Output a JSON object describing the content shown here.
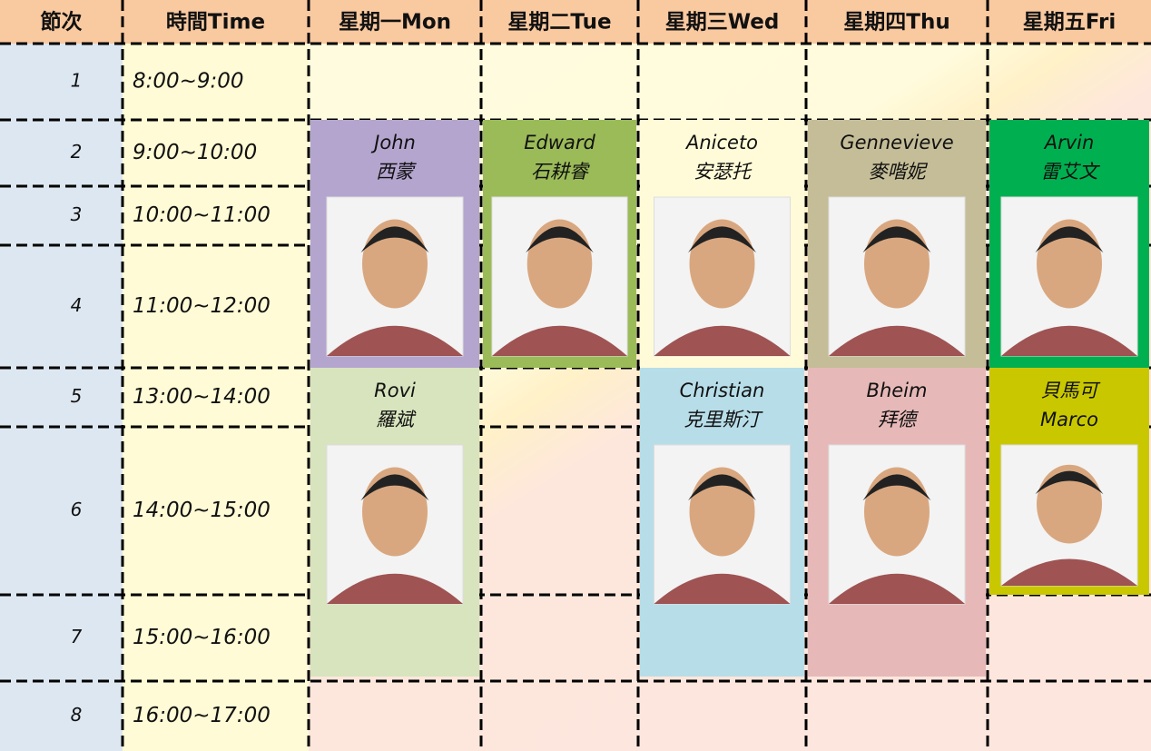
{
  "header": [
    "節次",
    "時間Time",
    "星期一Mon",
    "星期二Tue",
    "星期三Wed",
    "星期四Thu",
    "星期五Fri"
  ],
  "rows": [
    {
      "period": "1",
      "time": "8:00~9:00"
    },
    {
      "period": "2",
      "time": "9:00~10:00"
    },
    {
      "period": "3",
      "time": "10:00~11:00"
    },
    {
      "period": "4",
      "time": "11:00~12:00"
    },
    {
      "period": "5",
      "time": "13:00~14:00"
    },
    {
      "period": "6",
      "time": "14:00~15:00"
    },
    {
      "period": "7",
      "time": "15:00~16:00"
    },
    {
      "period": "8",
      "time": "16:00~17:00"
    }
  ],
  "teachers": [
    {
      "line1": "John",
      "line2": "西蒙"
    },
    {
      "line1": "Edward",
      "line2": "石耕睿"
    },
    {
      "line1": "Aniceto",
      "line2": "安瑟托"
    },
    {
      "line1": "Gennevieve",
      "line2": "麥喈妮"
    },
    {
      "line1": "Arvin",
      "line2": "雷艾文"
    },
    {
      "line1": "Rovi",
      "line2": "羅斌"
    },
    {
      "line1": "Christian",
      "line2": "克里斯汀"
    },
    {
      "line1": "Bheim",
      "line2": "拜德"
    },
    {
      "line1": "貝馬可",
      "line2": "Marco"
    }
  ]
}
